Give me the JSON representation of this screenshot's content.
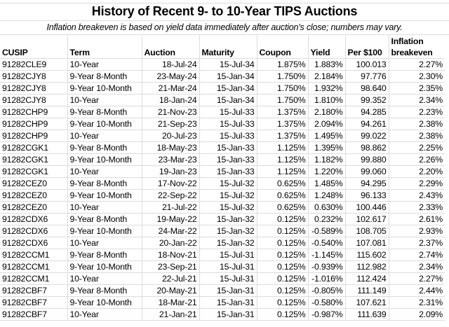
{
  "title": "History of Recent 9- to 10-Year TIPS Auctions",
  "subtitle": "Inflation breakeven is based on yield data immediately after auction's close; numbers may vary.",
  "columns": [
    "CUSIP",
    "Term",
    "Auction",
    "Maturity",
    "Coupon",
    "Yield",
    "Per $100",
    "Inflation breakeven"
  ],
  "rows": [
    [
      "91282CLE9",
      "10-Year",
      "18-Jul-24",
      "15-Jul-34",
      "1.875%",
      "1.883%",
      "100.013",
      "2.27%"
    ],
    [
      "91282CJY8",
      "9-Year 8-Month",
      "23-May-24",
      "15-Jan-34",
      "1.750%",
      "2.184%",
      "97.776",
      "2.30%"
    ],
    [
      "91282CJY8",
      "9-Year 10-Month",
      "21-Mar-24",
      "15-Jan-34",
      "1.750%",
      "1.932%",
      "98.640",
      "2.35%"
    ],
    [
      "91282CJY8",
      "10-Year",
      "18-Jan-24",
      "15-Jan-34",
      "1.750%",
      "1.810%",
      "99.352",
      "2.34%"
    ],
    [
      "91282CHP9",
      "9-Year 8-Month",
      "21-Nov-23",
      "15-Jul-33",
      "1.375%",
      "2.180%",
      "94.285",
      "2.23%"
    ],
    [
      "91282CHP9",
      "9-Year 10-Month",
      "21-Sep-23",
      "15-Jul-33",
      "1.375%",
      "2.094%",
      "94.261",
      "2.38%"
    ],
    [
      "91282CHP9",
      "10-Year",
      "20-Jul-23",
      "15-Jul-33",
      "1.375%",
      "1.495%",
      "99.022",
      "2.38%"
    ],
    [
      "91282CGK1",
      "9-Year 8-Month",
      "18-May-23",
      "15-Jan-33",
      "1.125%",
      "1.395%",
      "98.862",
      "2.25%"
    ],
    [
      "91282CGK1",
      "9-Year 10-Month",
      "23-Mar-23",
      "15-Jan-33",
      "1.125%",
      "1.182%",
      "99.880",
      "2.26%"
    ],
    [
      "91282CGK1",
      "10-Year",
      "19-Jan-23",
      "15-Jan-33",
      "1.125%",
      "1.220%",
      "99.060",
      "2.20%"
    ],
    [
      "91282CEZ0",
      "9-Year 8-Month",
      "17-Nov-22",
      "15-Jul-32",
      "0.625%",
      "1.485%",
      "94.295",
      "2.29%"
    ],
    [
      "91282CEZ0",
      "9-Year 10-Month",
      "22-Sep-22",
      "15-Jul-32",
      "0.625%",
      "1.248%",
      "96.133",
      "2.43%"
    ],
    [
      "91282CEZ0",
      "10-Year",
      "21-Jul-22",
      "15-Jul-32",
      "0.625%",
      "0.630%",
      "100.446",
      "2.33%"
    ],
    [
      "91282CDX6",
      "9-Year 8-Month",
      "19-May-22",
      "15-Jan-32",
      "0.125%",
      "0.232%",
      "102.617",
      "2.61%"
    ],
    [
      "91282CDX6",
      "9-Year 10-Month",
      "24-Mar-22",
      "15-Jan-32",
      "0.125%",
      "-0.589%",
      "108.705",
      "2.93%"
    ],
    [
      "91282CDX6",
      "10-Year",
      "20-Jan-22",
      "15-Jan-32",
      "0.125%",
      "-0.540%",
      "107.081",
      "2.37%"
    ],
    [
      "91282CCM1",
      "9-Year 8-Month",
      "18-Nov-21",
      "15-Jul-31",
      "0.125%",
      "-1.145%",
      "115.602",
      "2.74%"
    ],
    [
      "91282CCM1",
      "9-Year 10-Month",
      "23-Sep-21",
      "15-Jul-31",
      "0.125%",
      "-0.939%",
      "112.982",
      "2.34%"
    ],
    [
      "91282CCM1",
      "10-Year",
      "22-Jul-21",
      "15-Jul-31",
      "0.125%",
      "-1.016%",
      "112.424",
      "2.27%"
    ],
    [
      "91282CBF7",
      "9-Year 8-Month",
      "20-May-21",
      "15-Jan-31",
      "0.125%",
      "-0.805%",
      "111.149",
      "2.44%"
    ],
    [
      "91282CBF7",
      "9-Year 10-Month",
      "18-Mar-21",
      "15-Jan-31",
      "0.125%",
      "-0.580%",
      "107.621",
      "2.31%"
    ],
    [
      "91282CBF7",
      "10-Year",
      "21-Jan-21",
      "15-Jan-31",
      "0.125%",
      "-0.987%",
      "111.639",
      "2.09%"
    ]
  ]
}
